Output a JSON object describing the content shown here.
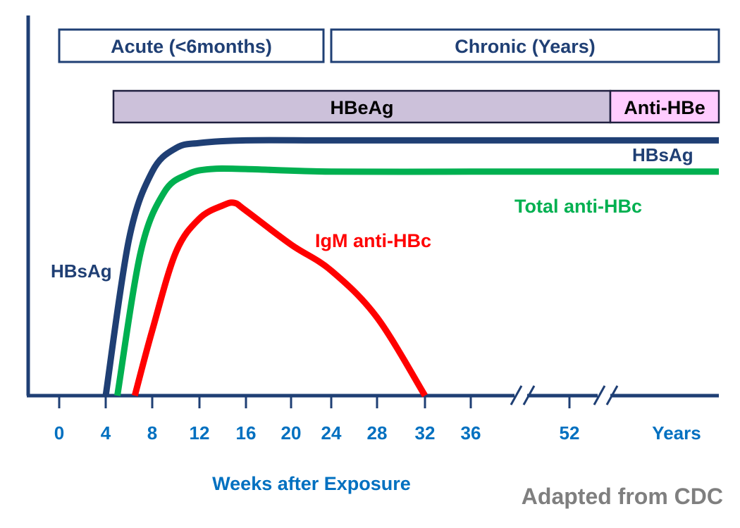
{
  "chart_data": {
    "type": "line",
    "xlabel": "Weeks after Exposure",
    "x_ticks": [
      "0",
      "4",
      "8",
      "12",
      "16",
      "20",
      "24",
      "28",
      "32",
      "36",
      "52",
      "Years"
    ],
    "x_breaks": [
      "between 36 and 52",
      "between 52 and Years"
    ],
    "ylabel": "",
    "grid": false,
    "phases": [
      {
        "label": "Acute (<6months)",
        "start": "0",
        "end": "24"
      },
      {
        "label": "Chronic  (Years)",
        "start": "24",
        "end": "Years"
      }
    ],
    "bars": [
      {
        "label": "HBeAg",
        "start": "4",
        "end": "52+",
        "color": "#ccc1da"
      },
      {
        "label": "Anti-HBe",
        "start": "52+",
        "end": "Years",
        "color": "#ffccff"
      }
    ],
    "series": [
      {
        "name": "HBsAg",
        "color": "#1f3f74",
        "points": [
          [
            4,
            0
          ],
          [
            6,
            60
          ],
          [
            8,
            86
          ],
          [
            10,
            95
          ],
          [
            12,
            97
          ],
          [
            16,
            98
          ],
          [
            24,
            98
          ],
          [
            36,
            98
          ],
          [
            52,
            98
          ],
          [
            60,
            98
          ]
        ]
      },
      {
        "name": "Total anti-HBc",
        "color": "#00b050",
        "points": [
          [
            5,
            0
          ],
          [
            7,
            55
          ],
          [
            9,
            78
          ],
          [
            11,
            85
          ],
          [
            13,
            87
          ],
          [
            16,
            87
          ],
          [
            24,
            86
          ],
          [
            36,
            86
          ],
          [
            52,
            86
          ],
          [
            60,
            86
          ]
        ]
      },
      {
        "name": "IgM anti-HBc",
        "color": "#ff0000",
        "points": [
          [
            6.5,
            0
          ],
          [
            8,
            25
          ],
          [
            10,
            55
          ],
          [
            12,
            68
          ],
          [
            14,
            73
          ],
          [
            15,
            74
          ],
          [
            16,
            71
          ],
          [
            20,
            58
          ],
          [
            24,
            48
          ],
          [
            28,
            30
          ],
          [
            32,
            0
          ]
        ]
      }
    ],
    "annotations": {
      "hbsag_left": "HBsAg",
      "hbsag_right": "HBsAg",
      "total_anti_hbc": "Total anti-HBc",
      "igm_anti_hbc": "IgM anti-HBc",
      "source": "Adapted from CDC"
    },
    "colors": {
      "axis": "#1f3f74",
      "tick_label": "#0070c0",
      "source_text": "#7f7f7f"
    }
  }
}
